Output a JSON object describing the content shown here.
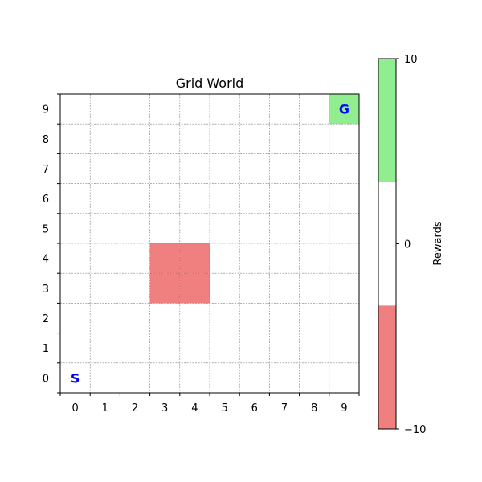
{
  "chart_data": {
    "type": "heatmap",
    "title": "Grid World",
    "grid_size": [
      10,
      10
    ],
    "x_ticks": [
      "0",
      "1",
      "2",
      "3",
      "4",
      "5",
      "6",
      "7",
      "8",
      "9"
    ],
    "y_ticks": [
      "0",
      "1",
      "2",
      "3",
      "4",
      "5",
      "6",
      "7",
      "8",
      "9"
    ],
    "grid_lines": true,
    "cells": [
      {
        "x": 9,
        "y": 9,
        "reward": 10,
        "color": "#90ee90"
      },
      {
        "x": 3,
        "y": 3,
        "reward": -10,
        "color": "#f08080"
      },
      {
        "x": 4,
        "y": 3,
        "reward": -10,
        "color": "#f08080"
      },
      {
        "x": 3,
        "y": 4,
        "reward": -10,
        "color": "#f08080"
      },
      {
        "x": 4,
        "y": 4,
        "reward": -10,
        "color": "#f08080"
      }
    ],
    "markers": [
      {
        "x": 0,
        "y": 0,
        "label": "S",
        "color": "#0000ff"
      },
      {
        "x": 9,
        "y": 9,
        "label": "G",
        "color": "#0000ff"
      }
    ],
    "colorbar": {
      "label": "Rewards",
      "range": [
        -10,
        10
      ],
      "ticks": [
        "−10",
        "0",
        "10"
      ],
      "bands": [
        {
          "from": -10,
          "to": -3.33,
          "color": "#f08080"
        },
        {
          "from": -3.33,
          "to": 3.33,
          "color": "#ffffff"
        },
        {
          "from": 3.33,
          "to": 10,
          "color": "#90ee90"
        }
      ]
    }
  }
}
